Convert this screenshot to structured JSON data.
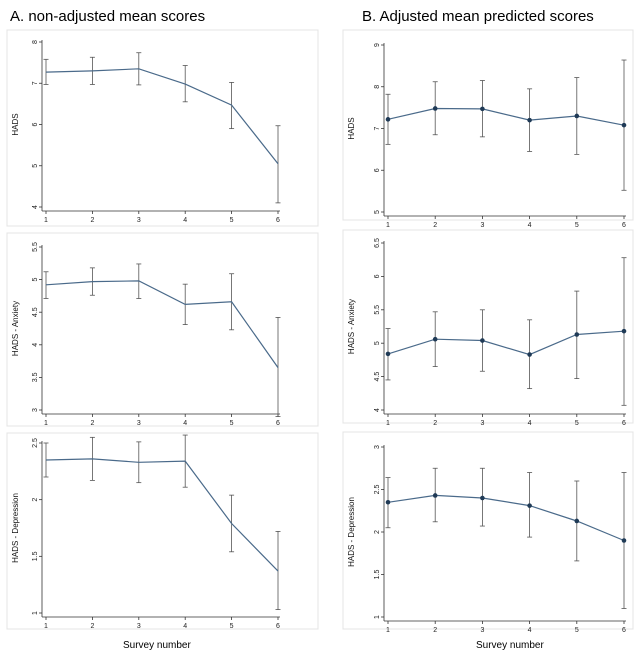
{
  "titles": {
    "left": "A. non-adjusted mean scores",
    "right": "B. Adjusted mean predicted scores"
  },
  "xcaption": {
    "left": "Survey number",
    "right": "Survey number"
  },
  "colors": {
    "line": "#4a6a8a",
    "marker": "#1f3a56",
    "ci": "#555555",
    "border": "#e4e4e4",
    "axis": "#333333"
  },
  "chart_data": [
    {
      "id": "A-HADS",
      "type": "line",
      "ylabel": "HADS",
      "markers": false,
      "x": [
        1,
        2,
        3,
        4,
        5,
        6
      ],
      "series": [
        {
          "values": [
            7.27,
            7.3,
            7.35,
            6.98,
            6.47,
            5.05
          ],
          "ci_low": [
            6.97,
            6.97,
            6.96,
            6.55,
            5.9,
            4.1
          ],
          "ci_high": [
            7.58,
            7.63,
            7.74,
            7.43,
            7.02,
            5.97
          ]
        }
      ],
      "ylim": [
        4,
        8
      ],
      "yticks": [
        4,
        5,
        6,
        7,
        8
      ],
      "xlim": [
        1,
        6
      ]
    },
    {
      "id": "A-Anxiety",
      "type": "line",
      "ylabel": "HADS - Anxiety",
      "markers": false,
      "x": [
        1,
        2,
        3,
        4,
        5,
        6
      ],
      "series": [
        {
          "values": [
            4.92,
            4.97,
            4.98,
            4.62,
            4.66,
            3.65
          ],
          "ci_low": [
            4.71,
            4.76,
            4.71,
            4.31,
            4.23,
            2.9
          ],
          "ci_high": [
            5.12,
            5.18,
            5.24,
            4.93,
            5.09,
            4.42
          ]
        }
      ],
      "ylim": [
        3,
        5.5
      ],
      "yticks": [
        3,
        3.5,
        4,
        4.5,
        5,
        5.5
      ],
      "xlim": [
        1,
        6
      ]
    },
    {
      "id": "A-Depression",
      "type": "line",
      "ylabel": "HADS - Depression",
      "markers": false,
      "x": [
        1,
        2,
        3,
        4,
        5,
        6
      ],
      "series": [
        {
          "values": [
            2.35,
            2.36,
            2.33,
            2.34,
            1.79,
            1.37
          ],
          "ci_low": [
            2.2,
            2.17,
            2.15,
            2.11,
            1.54,
            1.03
          ],
          "ci_high": [
            2.5,
            2.55,
            2.51,
            2.57,
            2.04,
            1.72
          ]
        }
      ],
      "ylim": [
        1,
        2.5
      ],
      "yticks": [
        1,
        1.5,
        2,
        2.5
      ],
      "xlim": [
        1,
        6
      ]
    },
    {
      "id": "B-HADS",
      "type": "line",
      "ylabel": "HADS",
      "markers": true,
      "x": [
        1,
        2,
        3,
        4,
        5,
        6
      ],
      "series": [
        {
          "values": [
            7.22,
            7.48,
            7.47,
            7.2,
            7.3,
            7.08
          ],
          "ci_low": [
            6.62,
            6.85,
            6.8,
            6.45,
            6.38,
            5.52
          ],
          "ci_high": [
            7.82,
            8.12,
            8.15,
            7.95,
            8.22,
            8.64
          ]
        }
      ],
      "ylim": [
        5,
        9
      ],
      "yticks": [
        5,
        6,
        7,
        8,
        9
      ],
      "xlim": [
        1,
        6
      ]
    },
    {
      "id": "B-Anxiety",
      "type": "line",
      "ylabel": "HADS - Anxiety",
      "markers": true,
      "x": [
        1,
        2,
        3,
        4,
        5,
        6
      ],
      "series": [
        {
          "values": [
            4.84,
            5.06,
            5.04,
            4.83,
            5.13,
            5.18
          ],
          "ci_low": [
            4.45,
            4.65,
            4.58,
            4.32,
            4.47,
            4.07
          ],
          "ci_high": [
            5.22,
            5.47,
            5.5,
            5.35,
            5.78,
            6.28
          ]
        }
      ],
      "ylim": [
        4,
        6.5
      ],
      "yticks": [
        4,
        4.5,
        5,
        5.5,
        6,
        6.5
      ],
      "xlim": [
        1,
        6
      ]
    },
    {
      "id": "B-Depression",
      "type": "line",
      "ylabel": "HADS - Depression",
      "markers": true,
      "x": [
        1,
        2,
        3,
        4,
        5,
        6
      ],
      "series": [
        {
          "values": [
            2.35,
            2.43,
            2.4,
            2.31,
            2.13,
            1.9
          ],
          "ci_low": [
            2.05,
            2.12,
            2.07,
            1.94,
            1.66,
            1.1
          ],
          "ci_high": [
            2.64,
            2.75,
            2.75,
            2.7,
            2.6,
            2.7
          ]
        }
      ],
      "ylim": [
        1,
        3
      ],
      "yticks": [
        1,
        1.5,
        2,
        2.5,
        3
      ],
      "xlim": [
        1,
        6
      ]
    }
  ]
}
